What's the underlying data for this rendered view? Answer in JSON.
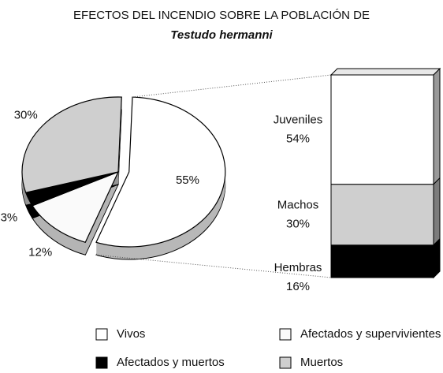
{
  "chart_data": [
    {
      "type": "pie",
      "title": "EFECTOS DEL INCENDIO SOBRE LA POBLACIÓN DE",
      "subtitle": "Testudo  hermanni",
      "categories": [
        "Vivos",
        "Afectados y supervivientes",
        "Afectados y muertos",
        "Muertos"
      ],
      "values": [
        55,
        12,
        3,
        30
      ],
      "value_labels": [
        "55%",
        "12%",
        "3%",
        "30%"
      ],
      "colors": [
        "#ffffff",
        "#fafafa",
        "#000000",
        "#cfcfcf"
      ]
    },
    {
      "type": "bar",
      "categories": [
        "Juveniles",
        "Machos",
        "Hembras"
      ],
      "values": [
        54,
        30,
        16
      ],
      "value_labels": [
        "54%",
        "30%",
        "16%"
      ],
      "colors": [
        "#ffffff",
        "#cfcfcf",
        "#000000"
      ]
    }
  ]
}
